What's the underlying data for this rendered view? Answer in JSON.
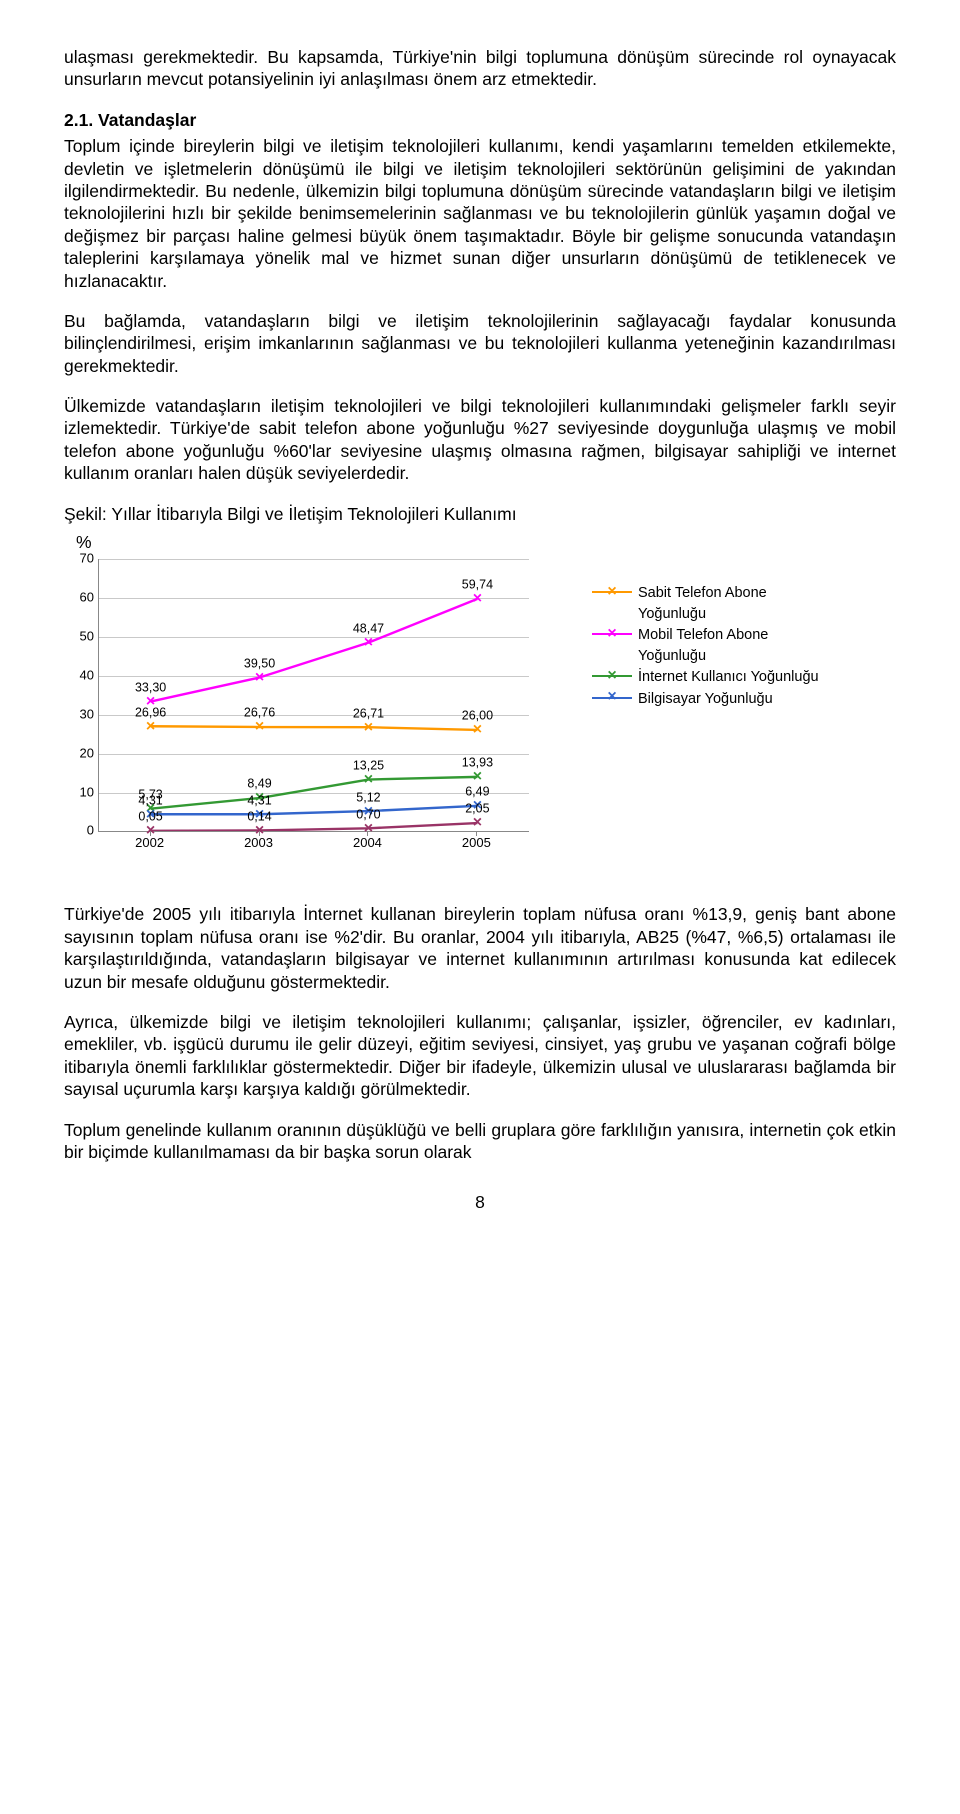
{
  "paragraphs": {
    "p1": "ulaşması gerekmektedir. Bu kapsamda, Türkiye'nin bilgi toplumuna dönüşüm sürecinde rol oynayacak unsurların mevcut potansiyelinin iyi anlaşılması önem arz etmektedir.",
    "h1": "2.1. Vatandaşlar",
    "p2": "Toplum içinde bireylerin bilgi ve iletişim teknolojileri kullanımı, kendi yaşamlarını temelden etkilemekte, devletin ve işletmelerin dönüşümü ile bilgi ve iletişim teknolojileri sektörünün gelişimini de yakından ilgilendirmektedir. Bu nedenle, ülkemizin bilgi toplumuna dönüşüm sürecinde vatandaşların bilgi ve iletişim teknolojilerini hızlı bir şekilde benimsemelerinin sağlanması ve bu teknolojilerin günlük yaşamın doğal ve değişmez bir parçası haline gelmesi büyük önem taşımaktadır. Böyle bir gelişme sonucunda vatandaşın taleplerini karşılamaya yönelik mal ve hizmet sunan diğer unsurların dönüşümü de tetiklenecek ve hızlanacaktır.",
    "p3": "Bu bağlamda, vatandaşların bilgi ve iletişim teknolojilerinin sağlayacağı faydalar konusunda bilinçlendirilmesi, erişim imkanlarının sağlanması ve bu teknolojileri kullanma yeteneğinin kazandırılması gerekmektedir.",
    "p4": "Ülkemizde vatandaşların iletişim teknolojileri ve bilgi teknolojileri kullanımındaki gelişmeler farklı seyir izlemektedir. Türkiye'de sabit telefon abone yoğunluğu %27 seviyesinde doygunluğa ulaşmış ve mobil telefon abone yoğunluğu %60'lar seviyesine ulaşmış olmasına rağmen, bilgisayar sahipliği ve internet kullanım oranları halen düşük seviyelerdedir.",
    "caption": "Şekil:   Yıllar İtibarıyla Bilgi ve İletişim Teknolojileri Kullanımı",
    "pct": "%",
    "p5": "Türkiye'de 2005 yılı itibarıyla İnternet kullanan bireylerin toplam nüfusa oranı %13,9, geniş bant abone sayısının toplam nüfusa oranı ise %2'dir. Bu oranlar, 2004 yılı itibarıyla, AB25 (%47, %6,5) ortalaması ile karşılaştırıldığında, vatandaşların bilgisayar ve internet kullanımının artırılması konusunda kat edilecek uzun bir mesafe olduğunu göstermektedir.",
    "p6": "Ayrıca, ülkemizde bilgi ve iletişim teknolojileri kullanımı; çalışanlar, işsizler, öğrenciler, ev kadınları, emekliler, vb. işgücü durumu ile gelir düzeyi, eğitim seviyesi, cinsiyet, yaş grubu ve yaşanan coğrafi bölge itibarıyla önemli farklılıklar göstermektedir. Diğer bir ifadeyle, ülkemizin ulusal ve uluslararası bağlamda bir sayısal uçurumla karşı karşıya kaldığı görülmektedir.",
    "p7": "Toplum genelinde kullanım oranının düşüklüğü ve belli gruplara göre farklılığın yanısıra, internetin çok etkin bir biçimde kullanılmaması da bir başka sorun olarak"
  },
  "chart": {
    "type": "line",
    "ymin": 0,
    "ymax": 70,
    "ytick_step": 10,
    "categories": [
      "2002",
      "2003",
      "2004",
      "2005"
    ],
    "plot_bg": "#ffffff",
    "grid_color": "#c9c9c9",
    "axis_color": "#888888",
    "label_fontsize": 13,
    "value_fontsize": 12.5,
    "series": [
      {
        "name": "Sabit Telefon Abone Yoğunluğu",
        "color": "#ff9900",
        "values": [
          26.96,
          26.76,
          26.71,
          26.0
        ],
        "labels": [
          "26,96",
          "26,76",
          "26,71",
          "26,00"
        ]
      },
      {
        "name": "Mobil Telefon Abone Yoğunluğu",
        "color": "#ff00ff",
        "values": [
          33.3,
          39.5,
          48.47,
          59.74
        ],
        "labels": [
          "33,30",
          "39,50",
          "48,47",
          "59,74"
        ]
      },
      {
        "name": "İnternet Kullanıcı Yoğunluğu",
        "color": "#339933",
        "values": [
          5.73,
          8.49,
          13.25,
          13.93
        ],
        "labels": [
          "5,73",
          "8,49",
          "13,25",
          "13,93"
        ]
      },
      {
        "name": "Bilgisayar Yoğunluğu",
        "color": "#3366cc",
        "values": [
          4.31,
          4.31,
          5.12,
          6.49
        ],
        "labels": [
          "4,31",
          "4,31",
          "5,12",
          "6,49"
        ]
      },
      {
        "name": "",
        "color": "#993366",
        "values": [
          0.05,
          0.14,
          0.7,
          2.05
        ],
        "labels": [
          "0,05",
          "0,14",
          "0,70",
          "2,05"
        ]
      }
    ]
  },
  "page_number": "8"
}
